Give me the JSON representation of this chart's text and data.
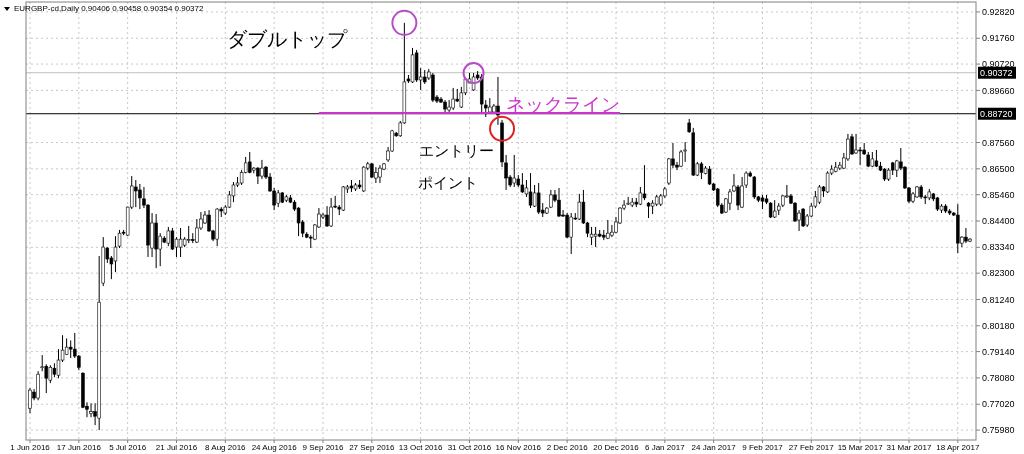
{
  "chart_data": {
    "type": "candlestick",
    "title": "EURGBP-cd,Daily  0.90406 0.90458 0.90354 0.90372",
    "color": "#000000",
    "grid": true,
    "legend": false,
    "ylim": [
      0.7558,
      0.9322
    ],
    "yticks": [
      {
        "value": 0.9282,
        "label": "0.92820"
      },
      {
        "value": 0.9176,
        "label": "0.91760"
      },
      {
        "value": 0.9072,
        "label": "0.90720"
      },
      {
        "value": 0.8966,
        "label": "0.89660"
      },
      {
        "value": 0.8756,
        "label": "0.87560"
      },
      {
        "value": 0.865,
        "label": "0.86500"
      },
      {
        "value": 0.8546,
        "label": "0.85460"
      },
      {
        "value": 0.844,
        "label": "0.84400"
      },
      {
        "value": 0.8334,
        "label": "0.83340"
      },
      {
        "value": 0.823,
        "label": "0.82300"
      },
      {
        "value": 0.8124,
        "label": "0.81240"
      },
      {
        "value": 0.8018,
        "label": "0.80180"
      },
      {
        "value": 0.7914,
        "label": "0.79140"
      },
      {
        "value": 0.7808,
        "label": "0.78080"
      },
      {
        "value": 0.7702,
        "label": "0.77020"
      },
      {
        "value": 0.7598,
        "label": "0.75980"
      }
    ],
    "ref_lines": [
      {
        "axis": "y",
        "value": 0.8872,
        "label": "0.88720",
        "color": "#000000"
      },
      {
        "axis": "y",
        "value": 0.90372,
        "label": "0.90372",
        "color": "#c0c0c0"
      }
    ],
    "annotations": [
      "ダブルトップ",
      "エントリー",
      "ポイント"
    ],
    "categories": [
      "1 Jun 2016",
      null,
      null,
      null,
      null,
      null,
      null,
      null,
      null,
      null,
      null,
      null,
      "17 Jun 2016",
      null,
      null,
      null,
      null,
      null,
      null,
      null,
      null,
      null,
      null,
      null,
      "5 Jul 2016",
      null,
      null,
      null,
      null,
      null,
      null,
      null,
      null,
      null,
      null,
      null,
      "21 Jul 2016",
      null,
      null,
      null,
      null,
      null,
      null,
      null,
      null,
      null,
      null,
      null,
      "8 Aug 2016",
      null,
      null,
      null,
      null,
      null,
      null,
      null,
      null,
      null,
      null,
      null,
      "24 Aug 2016",
      null,
      null,
      null,
      null,
      null,
      null,
      null,
      null,
      null,
      null,
      null,
      "9 Sep 2016",
      null,
      null,
      null,
      null,
      null,
      null,
      null,
      null,
      null,
      null,
      null,
      "27 Sep 2016",
      null,
      null,
      null,
      null,
      null,
      null,
      null,
      null,
      null,
      null,
      null,
      "13 Oct 2016",
      null,
      null,
      null,
      null,
      null,
      null,
      null,
      null,
      null,
      null,
      null,
      "31 Oct 2016",
      null,
      null,
      null,
      null,
      null,
      null,
      null,
      null,
      null,
      null,
      null,
      "16 Nov 2016",
      null,
      null,
      null,
      null,
      null,
      null,
      null,
      null,
      null,
      null,
      null,
      "2 Dec 2016",
      null,
      null,
      null,
      null,
      null,
      null,
      null,
      null,
      null,
      null,
      null,
      "20 Dec 2016",
      null,
      null,
      null,
      null,
      null,
      null,
      null,
      null,
      null,
      null,
      null,
      "6 Jan 2017",
      null,
      null,
      null,
      null,
      null,
      null,
      null,
      null,
      null,
      null,
      null,
      "24 Jan 2017",
      null,
      null,
      null,
      null,
      null,
      null,
      null,
      null,
      null,
      null,
      null,
      "9 Feb 2017",
      null,
      null,
      null,
      null,
      null,
      null,
      null,
      null,
      null,
      null,
      null,
      "27 Feb 2017",
      null,
      null,
      null,
      null,
      null,
      null,
      null,
      null,
      null,
      null,
      null,
      "15 Mar 2017",
      null,
      null,
      null,
      null,
      null,
      null,
      null,
      null,
      null,
      null,
      null,
      "31 Mar 2017",
      null,
      null,
      null,
      null,
      null,
      null,
      null,
      null,
      null,
      null,
      null,
      "18 Apr 2017",
      null,
      null,
      null
    ],
    "ohlc": [
      [
        0.7686,
        0.7767,
        0.7666,
        0.7759
      ],
      [
        0.7751,
        0.7763,
        0.7718,
        0.7727
      ],
      [
        0.7727,
        0.7835,
        0.7718,
        0.7823
      ],
      [
        0.7849,
        0.79,
        0.7835,
        0.7853
      ],
      [
        0.7855,
        0.7863,
        0.7747,
        0.7807
      ],
      [
        0.7799,
        0.7859,
        0.7787,
        0.7851
      ],
      [
        0.7847,
        0.7867,
        0.7811,
        0.7823
      ],
      [
        0.7819,
        0.7924,
        0.7807,
        0.788
      ],
      [
        0.788,
        0.798,
        0.7872,
        0.792
      ],
      [
        0.7902,
        0.7967,
        0.79,
        0.7932
      ],
      [
        0.7932,
        0.7959,
        0.7888,
        0.7924
      ],
      [
        0.7924,
        0.7989,
        0.7888,
        0.7896
      ],
      [
        0.7896,
        0.79,
        0.7839,
        0.7851
      ],
      [
        0.7827,
        0.7831,
        0.7686,
        0.769
      ],
      [
        0.7694,
        0.771,
        0.765,
        0.7682
      ],
      [
        0.7664,
        0.7706,
        0.765,
        0.7672
      ],
      [
        0.7672,
        0.7706,
        0.7618,
        0.7654
      ],
      [
        0.7646,
        0.8299,
        0.7598,
        0.8113
      ],
      [
        0.819,
        0.8375,
        0.8178,
        0.8335
      ],
      [
        0.8331,
        0.8335,
        0.8271,
        0.8287
      ],
      [
        0.8291,
        0.8299,
        0.8206,
        0.8267
      ],
      [
        0.8279,
        0.8379,
        0.8234,
        0.8335
      ],
      [
        0.8339,
        0.8404,
        0.8331,
        0.8391
      ],
      [
        0.8395,
        0.8404,
        0.8383,
        0.8391
      ],
      [
        0.8383,
        0.8498,
        0.8379,
        0.8496
      ],
      [
        0.8496,
        0.8621,
        0.8488,
        0.8581
      ],
      [
        0.8577,
        0.8605,
        0.8496,
        0.8561
      ],
      [
        0.8565,
        0.8589,
        0.8488,
        0.8533
      ],
      [
        0.8529,
        0.8577,
        0.8492,
        0.8504
      ],
      [
        0.8504,
        0.8508,
        0.8295,
        0.8343
      ],
      [
        0.8331,
        0.8472,
        0.8295,
        0.8432
      ],
      [
        0.8432,
        0.8468,
        0.825,
        0.8327
      ],
      [
        0.8327,
        0.8391,
        0.8258,
        0.8379
      ],
      [
        0.8371,
        0.8379,
        0.8351,
        0.8355
      ],
      [
        0.8351,
        0.8416,
        0.8339,
        0.84
      ],
      [
        0.84,
        0.8412,
        0.8323,
        0.8327
      ],
      [
        0.8335,
        0.8375,
        0.8295,
        0.8367
      ],
      [
        0.8335,
        0.8412,
        0.8295,
        0.8367
      ],
      [
        0.8343,
        0.8375,
        0.8335,
        0.8367
      ],
      [
        0.8363,
        0.842,
        0.8351,
        0.8365
      ],
      [
        0.8365,
        0.8391,
        0.8351,
        0.8363
      ],
      [
        0.8355,
        0.8448,
        0.8351,
        0.8412
      ],
      [
        0.8412,
        0.8476,
        0.8404,
        0.8448
      ],
      [
        0.8432,
        0.848,
        0.8428,
        0.8464
      ],
      [
        0.8464,
        0.8484,
        0.8396,
        0.84
      ],
      [
        0.84,
        0.8404,
        0.8359,
        0.8367
      ],
      [
        0.8367,
        0.8492,
        0.8339,
        0.8488
      ],
      [
        0.8488,
        0.8496,
        0.8456,
        0.848
      ],
      [
        0.8472,
        0.8504,
        0.8464,
        0.8496
      ],
      [
        0.8496,
        0.8561,
        0.8492,
        0.8545
      ],
      [
        0.8541,
        0.8597,
        0.8516,
        0.8585
      ],
      [
        0.8585,
        0.8617,
        0.8577,
        0.8593
      ],
      [
        0.8593,
        0.8645,
        0.8585,
        0.8636
      ],
      [
        0.8636,
        0.8698,
        0.8632,
        0.8674
      ],
      [
        0.8678,
        0.8718,
        0.8632,
        0.8636
      ],
      [
        0.8645,
        0.8657,
        0.8632,
        0.8653
      ],
      [
        0.8653,
        0.8657,
        0.8589,
        0.8621
      ],
      [
        0.8621,
        0.8686,
        0.8609,
        0.8653
      ],
      [
        0.8657,
        0.8661,
        0.8609,
        0.8617
      ],
      [
        0.8617,
        0.8633,
        0.8557,
        0.8561
      ],
      [
        0.8561,
        0.8573,
        0.8484,
        0.8504
      ],
      [
        0.8512,
        0.8565,
        0.8496,
        0.8553
      ],
      [
        0.8553,
        0.8557,
        0.8512,
        0.8516
      ],
      [
        0.8524,
        0.8545,
        0.8516,
        0.8537
      ],
      [
        0.8533,
        0.8545,
        0.8512,
        0.8516
      ],
      [
        0.8516,
        0.8524,
        0.848,
        0.8488
      ],
      [
        0.8492,
        0.8496,
        0.8379,
        0.8432
      ],
      [
        0.8436,
        0.8444,
        0.8375,
        0.8391
      ],
      [
        0.8387,
        0.8395,
        0.8371,
        0.8375
      ],
      [
        0.8375,
        0.8383,
        0.8331,
        0.8371
      ],
      [
        0.8367,
        0.8428,
        0.8363,
        0.8424
      ],
      [
        0.8416,
        0.8492,
        0.8412,
        0.8468
      ],
      [
        0.8456,
        0.8472,
        0.8448,
        0.8464
      ],
      [
        0.8464,
        0.85,
        0.8416,
        0.842
      ],
      [
        0.842,
        0.8533,
        0.8416,
        0.8496
      ],
      [
        0.85,
        0.8541,
        0.8492,
        0.8496
      ],
      [
        0.8496,
        0.8504,
        0.8464,
        0.8488
      ],
      [
        0.8484,
        0.8581,
        0.848,
        0.8577
      ],
      [
        0.8569,
        0.8585,
        0.8553,
        0.8577
      ],
      [
        0.8581,
        0.8605,
        0.8557,
        0.8573
      ],
      [
        0.8569,
        0.8593,
        0.8561,
        0.8585
      ],
      [
        0.8585,
        0.8605,
        0.8569,
        0.8577
      ],
      [
        0.8561,
        0.8661,
        0.8557,
        0.8657
      ],
      [
        0.8653,
        0.8678,
        0.8645,
        0.867
      ],
      [
        0.867,
        0.8674,
        0.8613,
        0.8617
      ],
      [
        0.8613,
        0.8657,
        0.8593,
        0.8636
      ],
      [
        0.8617,
        0.8665,
        0.8593,
        0.8653
      ],
      [
        0.8649,
        0.8674,
        0.8645,
        0.867
      ],
      [
        0.8686,
        0.8738,
        0.8678,
        0.8722
      ],
      [
        0.8722,
        0.8807,
        0.8718,
        0.8803
      ],
      [
        0.8794,
        0.8799,
        0.8779,
        0.8783
      ],
      [
        0.8783,
        0.8843,
        0.8779,
        0.8835
      ],
      [
        0.8835,
        0.9238,
        0.8831,
        0.9
      ],
      [
        0.9012,
        0.9028,
        0.8996,
        0.9004
      ],
      [
        0.9,
        0.9137,
        0.8996,
        0.9109
      ],
      [
        0.9117,
        0.9129,
        0.9,
        0.9008
      ],
      [
        0.9008,
        0.9056,
        0.8968,
        0.902
      ],
      [
        0.902,
        0.9048,
        0.8992,
        0.9
      ],
      [
        0.9016,
        0.9052,
        0.9008,
        0.904
      ],
      [
        0.9028,
        0.9036,
        0.8919,
        0.8927
      ],
      [
        0.8939,
        0.8947,
        0.8915,
        0.8923
      ],
      [
        0.8931,
        0.8939,
        0.8915,
        0.8919
      ],
      [
        0.8919,
        0.8927,
        0.8879,
        0.8891
      ],
      [
        0.8887,
        0.8927,
        0.8879,
        0.8899
      ],
      [
        0.8895,
        0.8976,
        0.8887,
        0.8931
      ],
      [
        0.8931,
        0.8972,
        0.8919,
        0.8923
      ],
      [
        0.8899,
        0.898,
        0.8895,
        0.8956
      ],
      [
        0.8956,
        0.9016,
        0.8947,
        0.9012
      ],
      [
        0.8996,
        0.9036,
        0.8996,
        0.9012
      ],
      [
        0.8968,
        0.9036,
        0.8964,
        0.902
      ],
      [
        0.9028,
        0.9044,
        0.9008,
        0.9016
      ],
      [
        0.902,
        0.9032,
        0.8879,
        0.8911
      ],
      [
        0.8907,
        0.8927,
        0.8859,
        0.8895
      ],
      [
        0.8879,
        0.8935,
        0.8875,
        0.8899
      ],
      [
        0.8879,
        0.8911,
        0.8875,
        0.8903
      ],
      [
        0.8903,
        0.902,
        0.8827,
        0.8867
      ],
      [
        0.8835,
        0.8847,
        0.8657,
        0.8678
      ],
      [
        0.8674,
        0.8706,
        0.8565,
        0.8613
      ],
      [
        0.8617,
        0.8625,
        0.8577,
        0.8585
      ],
      [
        0.8593,
        0.8706,
        0.8577,
        0.8613
      ],
      [
        0.8609,
        0.8625,
        0.8577,
        0.8585
      ],
      [
        0.8585,
        0.8633,
        0.8553,
        0.8557
      ],
      [
        0.8549,
        0.8605,
        0.8537,
        0.8573
      ],
      [
        0.8557,
        0.8633,
        0.8492,
        0.8504
      ],
      [
        0.85,
        0.8585,
        0.8496,
        0.8553
      ],
      [
        0.8553,
        0.8593,
        0.8468,
        0.8476
      ],
      [
        0.8484,
        0.8512,
        0.8456,
        0.8472
      ],
      [
        0.8472,
        0.8496,
        0.8468,
        0.8492
      ],
      [
        0.8496,
        0.8565,
        0.8492,
        0.8545
      ],
      [
        0.8545,
        0.8565,
        0.8516,
        0.8524
      ],
      [
        0.8524,
        0.8573,
        0.8456,
        0.846
      ],
      [
        0.8464,
        0.8484,
        0.8456,
        0.846
      ],
      [
        0.8464,
        0.8472,
        0.8371,
        0.8375
      ],
      [
        0.8375,
        0.8472,
        0.8307,
        0.8456
      ],
      [
        0.8452,
        0.8472,
        0.8444,
        0.8448
      ],
      [
        0.8448,
        0.8549,
        0.8444,
        0.8516
      ],
      [
        0.8516,
        0.8565,
        0.8428,
        0.8432
      ],
      [
        0.8432,
        0.8436,
        0.8375,
        0.8391
      ],
      [
        0.8375,
        0.8416,
        0.8343,
        0.8387
      ],
      [
        0.8379,
        0.8416,
        0.8335,
        0.8387
      ],
      [
        0.8387,
        0.8404,
        0.8375,
        0.8379
      ],
      [
        0.8383,
        0.8404,
        0.8363,
        0.8375
      ],
      [
        0.8371,
        0.8444,
        0.8367,
        0.8391
      ],
      [
        0.8383,
        0.8424,
        0.8375,
        0.8395
      ],
      [
        0.8395,
        0.8456,
        0.8391,
        0.8436
      ],
      [
        0.8432,
        0.8496,
        0.8428,
        0.8492
      ],
      [
        0.8492,
        0.8524,
        0.8484,
        0.8504
      ],
      [
        0.8508,
        0.8537,
        0.8504,
        0.8512
      ],
      [
        0.8504,
        0.8533,
        0.8496,
        0.8516
      ],
      [
        0.8516,
        0.8533,
        0.8496,
        0.8508
      ],
      [
        0.8508,
        0.8577,
        0.8504,
        0.8553
      ],
      [
        0.8549,
        0.8665,
        0.8524,
        0.8533
      ],
      [
        0.8512,
        0.8516,
        0.8452,
        0.85
      ],
      [
        0.85,
        0.8524,
        0.8468,
        0.8512
      ],
      [
        0.8508,
        0.8545,
        0.85,
        0.8537
      ],
      [
        0.8508,
        0.8549,
        0.85,
        0.8541
      ],
      [
        0.8541,
        0.8577,
        0.8533,
        0.8569
      ],
      [
        0.8593,
        0.8694,
        0.8585,
        0.869
      ],
      [
        0.869,
        0.8754,
        0.8653,
        0.8665
      ],
      [
        0.8665,
        0.8678,
        0.8645,
        0.8657
      ],
      [
        0.8661,
        0.8726,
        0.8657,
        0.8718
      ],
      [
        0.8722,
        0.8758,
        0.8678,
        0.8726
      ],
      [
        0.8835,
        0.8851,
        0.8795,
        0.8799
      ],
      [
        0.8795,
        0.8815,
        0.8621,
        0.8625
      ],
      [
        0.8625,
        0.8678,
        0.8621,
        0.867
      ],
      [
        0.867,
        0.8678,
        0.8609,
        0.8636
      ],
      [
        0.8632,
        0.8661,
        0.8628,
        0.8653
      ],
      [
        0.8649,
        0.8661,
        0.8585,
        0.8589
      ],
      [
        0.8589,
        0.8593,
        0.8561,
        0.8565
      ],
      [
        0.8569,
        0.8573,
        0.8496,
        0.8504
      ],
      [
        0.8504,
        0.8512,
        0.8468,
        0.8472
      ],
      [
        0.8476,
        0.8533,
        0.8472,
        0.8529
      ],
      [
        0.8512,
        0.8569,
        0.8484,
        0.8557
      ],
      [
        0.8561,
        0.8629,
        0.8557,
        0.8581
      ],
      [
        0.8577,
        0.8585,
        0.8484,
        0.8504
      ],
      [
        0.8496,
        0.8617,
        0.8492,
        0.8581
      ],
      [
        0.8585,
        0.864,
        0.8573,
        0.8633
      ],
      [
        0.8633,
        0.864,
        0.8617,
        0.8621
      ],
      [
        0.8617,
        0.8621,
        0.8529,
        0.8537
      ],
      [
        0.8537,
        0.8541,
        0.8516,
        0.8524
      ],
      [
        0.8533,
        0.8545,
        0.8488,
        0.852
      ],
      [
        0.8529,
        0.8545,
        0.8508,
        0.8516
      ],
      [
        0.8512,
        0.8516,
        0.8452,
        0.8456
      ],
      [
        0.8456,
        0.8524,
        0.8452,
        0.848
      ],
      [
        0.8484,
        0.8512,
        0.8464,
        0.85
      ],
      [
        0.8504,
        0.8545,
        0.8496,
        0.8541
      ],
      [
        0.8537,
        0.8585,
        0.8533,
        0.8541
      ],
      [
        0.8541,
        0.8549,
        0.8508,
        0.8512
      ],
      [
        0.8512,
        0.8516,
        0.8436,
        0.844
      ],
      [
        0.8444,
        0.8484,
        0.84,
        0.8472
      ],
      [
        0.8488,
        0.8492,
        0.8416,
        0.842
      ],
      [
        0.8424,
        0.8468,
        0.8416,
        0.846
      ],
      [
        0.846,
        0.8512,
        0.8456,
        0.85
      ],
      [
        0.85,
        0.8561,
        0.8492,
        0.8537
      ],
      [
        0.8516,
        0.8585,
        0.8508,
        0.8577
      ],
      [
        0.8577,
        0.8581,
        0.8537,
        0.8561
      ],
      [
        0.8557,
        0.864,
        0.8553,
        0.8633
      ],
      [
        0.8633,
        0.8665,
        0.8625,
        0.8649
      ],
      [
        0.864,
        0.8678,
        0.8636,
        0.8657
      ],
      [
        0.8653,
        0.8678,
        0.8645,
        0.8665
      ],
      [
        0.8653,
        0.8714,
        0.8649,
        0.8694
      ],
      [
        0.869,
        0.8791,
        0.8682,
        0.877
      ],
      [
        0.8779,
        0.8791,
        0.8706,
        0.871
      ],
      [
        0.8714,
        0.8791,
        0.871,
        0.8726
      ],
      [
        0.8726,
        0.8738,
        0.8665,
        0.8722
      ],
      [
        0.8726,
        0.8754,
        0.8706,
        0.871
      ],
      [
        0.8706,
        0.8718,
        0.8657,
        0.8661
      ],
      [
        0.8661,
        0.8718,
        0.8657,
        0.869
      ],
      [
        0.8682,
        0.8726,
        0.8657,
        0.8661
      ],
      [
        0.8661,
        0.8678,
        0.8641,
        0.8645
      ],
      [
        0.8649,
        0.8653,
        0.8601,
        0.8609
      ],
      [
        0.8609,
        0.8653,
        0.8601,
        0.8645
      ],
      [
        0.8674,
        0.8678,
        0.8625,
        0.8645
      ],
      [
        0.8645,
        0.8686,
        0.8617,
        0.8682
      ],
      [
        0.8678,
        0.8734,
        0.8645,
        0.8653
      ],
      [
        0.8657,
        0.8661,
        0.8569,
        0.8573
      ],
      [
        0.8573,
        0.8577,
        0.8512,
        0.852
      ],
      [
        0.852,
        0.8557,
        0.8512,
        0.8549
      ],
      [
        0.8537,
        0.8581,
        0.8533,
        0.8577
      ],
      [
        0.8577,
        0.8585,
        0.8529,
        0.8537
      ],
      [
        0.8537,
        0.8545,
        0.8508,
        0.8533
      ],
      [
        0.8533,
        0.8569,
        0.8524,
        0.8557
      ],
      [
        0.8549,
        0.8553,
        0.852,
        0.8529
      ],
      [
        0.8533,
        0.8537,
        0.848,
        0.8488
      ],
      [
        0.8484,
        0.8508,
        0.8472,
        0.85
      ],
      [
        0.85,
        0.8508,
        0.8472,
        0.848
      ],
      [
        0.848,
        0.8488,
        0.8464,
        0.8472
      ],
      [
        0.8472,
        0.8476,
        0.846,
        0.8464
      ],
      [
        0.8464,
        0.8508,
        0.8311,
        0.8351
      ],
      [
        0.8351,
        0.8379,
        0.8335,
        0.8375
      ],
      [
        0.8375,
        0.8412,
        0.8351,
        0.8359
      ],
      [
        0.8359,
        0.8371,
        0.8355,
        0.8367
      ]
    ],
    "series": [
      {
        "type": "line",
        "name": "ネックライン",
        "color": "#cc33cc",
        "values": [
          null,
          null,
          null,
          null,
          null,
          null,
          null,
          null,
          null,
          null,
          null,
          null,
          null,
          null,
          null,
          null,
          null,
          null,
          null,
          null,
          null,
          null,
          null,
          null,
          null,
          null,
          null,
          null,
          null,
          null,
          null,
          null,
          null,
          null,
          null,
          null,
          null,
          null,
          null,
          null,
          null,
          null,
          null,
          null,
          null,
          null,
          null,
          null,
          null,
          null,
          null,
          null,
          null,
          null,
          null,
          null,
          null,
          null,
          null,
          null,
          null,
          null,
          null,
          null,
          null,
          null,
          null,
          null,
          null,
          null,
          null,
          0.8875,
          0.8875,
          0.8875,
          0.8875,
          0.8875,
          0.8875,
          0.8875,
          0.8875,
          0.8875,
          0.8875,
          0.8875,
          0.8875,
          0.8875,
          0.8875,
          0.8875,
          0.8875,
          0.8875,
          0.8875,
          0.8875,
          0.8875,
          0.8875,
          0.8875,
          0.8875,
          0.8875,
          0.8875,
          0.8875,
          0.8875,
          0.8875,
          0.8875,
          0.8875,
          0.8875,
          0.8875,
          0.8875,
          0.8875,
          0.8875,
          0.8875,
          0.8875,
          0.8875,
          0.8875,
          0.8875,
          0.8875,
          0.8875,
          0.8875,
          0.8875,
          0.8875,
          0.8875,
          0.8875,
          0.8875,
          0.8875,
          0.8875,
          0.8875,
          0.8875,
          0.8875,
          0.8875,
          0.8875,
          0.8875,
          0.8875,
          0.8875,
          0.8875,
          0.8875,
          0.8875,
          0.8875,
          0.8875,
          0.8875,
          0.8875,
          0.8875,
          0.8875,
          0.8875,
          0.8875,
          0.8875,
          0.8875,
          0.8875,
          0.8875,
          0.8875,
          0.8875,
          null,
          null,
          null,
          null,
          null,
          null,
          null,
          null,
          null,
          null,
          null,
          null,
          null,
          null,
          null,
          null,
          null,
          null,
          null,
          null,
          null,
          null,
          null,
          null,
          null,
          null,
          null,
          null,
          null,
          null,
          null,
          null,
          null,
          null,
          null,
          null,
          null,
          null,
          null,
          null,
          null,
          null,
          null,
          null,
          null,
          null,
          null,
          null,
          null,
          null,
          null,
          null,
          null,
          null,
          null,
          null,
          null,
          null,
          null,
          null,
          null,
          null,
          null,
          null,
          null,
          null,
          null,
          null,
          null,
          null,
          null,
          null,
          null,
          null,
          null,
          null,
          null,
          null,
          null,
          null,
          null,
          null,
          null,
          null,
          null,
          null
        ]
      }
    ]
  }
}
